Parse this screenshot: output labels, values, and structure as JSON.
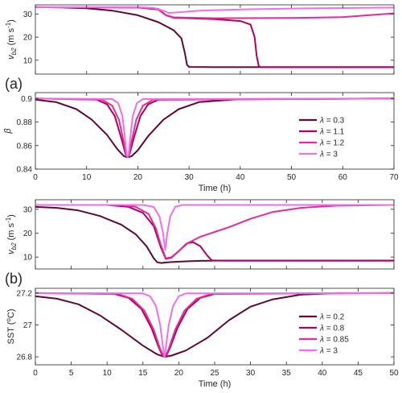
{
  "panel_labels": [
    "(a)",
    "(b)"
  ],
  "colors": {
    "dark_maroon": "#5c0a33",
    "crimson": "#b0005f",
    "magenta": "#e02d97",
    "light_magenta": "#f26ee8",
    "axis": "#262626"
  },
  "chart_data": [
    {
      "id": "a-top",
      "type": "line",
      "title": "",
      "xlabel": "",
      "ylabel": "v_b2 (m s^-1)",
      "xlim": [
        0,
        70
      ],
      "ylim": [
        4,
        34
      ],
      "xticks": [],
      "yticks": [
        10,
        20,
        30
      ],
      "grid": false,
      "series": [
        {
          "name": "λ = 0.3",
          "color": "#5c0a33",
          "points": [
            [
              0,
              33
            ],
            [
              5,
              32.9
            ],
            [
              10,
              32.5
            ],
            [
              15,
              31.5
            ],
            [
              20,
              29.5
            ],
            [
              24,
              26.5
            ],
            [
              27,
              23
            ],
            [
              28.5,
              19.5
            ],
            [
              29.2,
              13
            ],
            [
              29.6,
              8
            ],
            [
              30,
              7.1
            ],
            [
              35,
              7
            ],
            [
              70,
              7
            ]
          ]
        },
        {
          "name": "λ = 1.1",
          "color": "#b0005f",
          "points": [
            [
              0,
              33
            ],
            [
              20,
              32.8
            ],
            [
              24,
              32
            ],
            [
              25.5,
              29.5
            ],
            [
              27,
              28.4
            ],
            [
              30,
              28.2
            ],
            [
              35,
              27.8
            ],
            [
              40,
              27
            ],
            [
              42,
              25.5
            ],
            [
              42.8,
              20
            ],
            [
              43.2,
              12
            ],
            [
              43.6,
              7.5
            ],
            [
              44,
              7
            ],
            [
              70,
              7
            ]
          ]
        },
        {
          "name": "λ = 1.2",
          "color": "#e02d97",
          "points": [
            [
              0,
              33
            ],
            [
              20,
              32.9
            ],
            [
              24,
              32.3
            ],
            [
              25.5,
              29.5
            ],
            [
              27,
              28.6
            ],
            [
              35,
              28.2
            ],
            [
              50,
              28.3
            ],
            [
              60,
              28.7
            ],
            [
              65,
              29.5
            ],
            [
              70,
              30.3
            ]
          ]
        },
        {
          "name": "λ = 3",
          "color": "#f26ee8",
          "points": [
            [
              0,
              33
            ],
            [
              20,
              33
            ],
            [
              23,
              32.7
            ],
            [
              25,
              31.5
            ],
            [
              26,
              30.5
            ],
            [
              28,
              30.8
            ],
            [
              32,
              31.5
            ],
            [
              40,
              32
            ],
            [
              50,
              32.4
            ],
            [
              60,
              32.6
            ],
            [
              70,
              32.8
            ]
          ]
        }
      ]
    },
    {
      "id": "a-bottom",
      "type": "line",
      "title": "",
      "xlabel": "Time (h)",
      "ylabel": "β",
      "xlim": [
        0,
        70
      ],
      "ylim": [
        0.84,
        0.905
      ],
      "xticks": [
        0,
        10,
        20,
        30,
        40,
        50,
        60,
        70
      ],
      "yticks": [
        0.84,
        0.86,
        0.88,
        0.9
      ],
      "ytick_labels": [
        "0.84",
        "0.86",
        "0.88",
        "0.9"
      ],
      "grid": false,
      "legend": "right",
      "series": [
        {
          "name": "λ = 0.3",
          "color": "#5c0a33",
          "points": [
            [
              0,
              0.899
            ],
            [
              4,
              0.897
            ],
            [
              8,
              0.891
            ],
            [
              11,
              0.882
            ],
            [
              14,
              0.869
            ],
            [
              16,
              0.857
            ],
            [
              17.3,
              0.851
            ],
            [
              18,
              0.85
            ],
            [
              18.8,
              0.851
            ],
            [
              20,
              0.856
            ],
            [
              22,
              0.868
            ],
            [
              25,
              0.882
            ],
            [
              28,
              0.891
            ],
            [
              32,
              0.897
            ],
            [
              40,
              0.8995
            ],
            [
              70,
              0.9
            ]
          ]
        },
        {
          "name": "λ = 1.1",
          "color": "#b0005f",
          "points": [
            [
              0,
              0.9
            ],
            [
              12,
              0.899
            ],
            [
              14,
              0.895
            ],
            [
              15.5,
              0.885
            ],
            [
              16.8,
              0.866
            ],
            [
              17.6,
              0.853
            ],
            [
              18,
              0.85
            ],
            [
              18.4,
              0.853
            ],
            [
              19.2,
              0.866
            ],
            [
              20.5,
              0.885
            ],
            [
              22,
              0.895
            ],
            [
              24,
              0.899
            ],
            [
              70,
              0.9
            ]
          ]
        },
        {
          "name": "λ = 1.2",
          "color": "#e02d97",
          "points": [
            [
              0,
              0.9
            ],
            [
              13,
              0.899
            ],
            [
              15,
              0.894
            ],
            [
              16.3,
              0.882
            ],
            [
              17.2,
              0.864
            ],
            [
              17.7,
              0.853
            ],
            [
              18,
              0.85
            ],
            [
              18.3,
              0.853
            ],
            [
              18.8,
              0.864
            ],
            [
              19.7,
              0.882
            ],
            [
              21,
              0.894
            ],
            [
              23,
              0.899
            ],
            [
              70,
              0.9
            ]
          ]
        },
        {
          "name": "λ = 3",
          "color": "#f26ee8",
          "points": [
            [
              0,
              0.9
            ],
            [
              15,
              0.8995
            ],
            [
              16.2,
              0.896
            ],
            [
              17,
              0.885
            ],
            [
              17.5,
              0.866
            ],
            [
              17.8,
              0.853
            ],
            [
              18,
              0.85
            ],
            [
              18.2,
              0.853
            ],
            [
              18.5,
              0.866
            ],
            [
              19,
              0.885
            ],
            [
              19.8,
              0.896
            ],
            [
              21,
              0.8995
            ],
            [
              70,
              0.9
            ]
          ]
        }
      ]
    },
    {
      "id": "b-top",
      "type": "line",
      "title": "",
      "xlabel": "",
      "ylabel": "v_b2 (m s^-1)",
      "xlim": [
        0,
        50
      ],
      "ylim": [
        5,
        34
      ],
      "xticks": [],
      "yticks": [
        10,
        20,
        30
      ],
      "grid": false,
      "series": [
        {
          "name": "λ = 0.2",
          "color": "#5c0a33",
          "points": [
            [
              0,
              31
            ],
            [
              3,
              30.6
            ],
            [
              6,
              29.5
            ],
            [
              9,
              27.2
            ],
            [
              12,
              23.5
            ],
            [
              14,
              19.5
            ],
            [
              15.5,
              14.5
            ],
            [
              16.5,
              9.5
            ],
            [
              17,
              7.8
            ],
            [
              17.6,
              7.5
            ],
            [
              18,
              7.7
            ],
            [
              19,
              7.9
            ],
            [
              21,
              8.2
            ],
            [
              23,
              8.4
            ],
            [
              25,
              8.5
            ],
            [
              30,
              8.5
            ],
            [
              50,
              8.5
            ]
          ]
        },
        {
          "name": "λ = 0.8",
          "color": "#b0005f",
          "points": [
            [
              0,
              31.8
            ],
            [
              10,
              31.8
            ],
            [
              13,
              31
            ],
            [
              15,
              28.5
            ],
            [
              16.5,
              23
            ],
            [
              17.5,
              14
            ],
            [
              18.2,
              9.2
            ],
            [
              19,
              9.8
            ],
            [
              20,
              12.5
            ],
            [
              21.2,
              15.8
            ],
            [
              22,
              16.2
            ],
            [
              23,
              14.5
            ],
            [
              24,
              10.5
            ],
            [
              24.6,
              8.6
            ],
            [
              26,
              8.5
            ],
            [
              50,
              8.5
            ]
          ]
        },
        {
          "name": "λ = 0.85",
          "color": "#e02d97",
          "points": [
            [
              0,
              31.8
            ],
            [
              12,
              31.8
            ],
            [
              14,
              31
            ],
            [
              15.8,
              28
            ],
            [
              16.8,
              22
            ],
            [
              17.5,
              15
            ],
            [
              18.2,
              9.5
            ],
            [
              19,
              10
            ],
            [
              20,
              12.5
            ],
            [
              21,
              15.5
            ],
            [
              23,
              18.5
            ],
            [
              25,
              20.5
            ],
            [
              27,
              22.5
            ],
            [
              30,
              26
            ],
            [
              33,
              28.8
            ],
            [
              37,
              30.6
            ],
            [
              42,
              31.5
            ],
            [
              50,
              31.8
            ]
          ]
        },
        {
          "name": "λ = 3",
          "color": "#f26ee8",
          "points": [
            [
              0,
              31.8
            ],
            [
              15,
              31.8
            ],
            [
              16.5,
              31
            ],
            [
              17.3,
              27
            ],
            [
              17.8,
              20
            ],
            [
              18.1,
              13
            ],
            [
              18.4,
              20
            ],
            [
              18.8,
              27
            ],
            [
              19.5,
              31
            ],
            [
              20.5,
              31.8
            ],
            [
              50,
              31.8
            ]
          ]
        }
      ]
    },
    {
      "id": "b-bottom",
      "type": "line",
      "title": "",
      "xlabel": "Time (h)",
      "ylabel": "SST (°C)",
      "xlim": [
        0,
        50
      ],
      "ylim": [
        26.75,
        27.23
      ],
      "xticks": [
        0,
        5,
        10,
        15,
        20,
        25,
        30,
        35,
        40,
        45,
        50
      ],
      "yticks": [
        26.8,
        27,
        27.2
      ],
      "ytick_labels": [
        "26.8",
        "27",
        "27.2"
      ],
      "grid": false,
      "legend": "right",
      "series": [
        {
          "name": "λ = 0.2",
          "color": "#5c0a33",
          "points": [
            [
              0,
              27.18
            ],
            [
              3,
              27.165
            ],
            [
              6,
              27.13
            ],
            [
              9,
              27.06
            ],
            [
              12,
              26.97
            ],
            [
              15,
              26.87
            ],
            [
              17,
              26.815
            ],
            [
              18,
              26.8
            ],
            [
              19,
              26.808
            ],
            [
              21,
              26.84
            ],
            [
              24,
              26.92
            ],
            [
              27,
              27.03
            ],
            [
              30,
              27.115
            ],
            [
              33,
              27.16
            ],
            [
              37,
              27.19
            ],
            [
              42,
              27.2
            ],
            [
              50,
              27.2
            ]
          ]
        },
        {
          "name": "λ = 0.8",
          "color": "#b0005f",
          "points": [
            [
              0,
              27.2
            ],
            [
              11,
              27.195
            ],
            [
              13,
              27.17
            ],
            [
              14.8,
              27.1
            ],
            [
              16.2,
              26.98
            ],
            [
              17.2,
              26.86
            ],
            [
              17.7,
              26.81
            ],
            [
              18,
              26.8
            ],
            [
              18.3,
              26.81
            ],
            [
              18.8,
              26.86
            ],
            [
              19.8,
              26.98
            ],
            [
              21.2,
              27.1
            ],
            [
              23,
              27.17
            ],
            [
              25,
              27.195
            ],
            [
              50,
              27.2
            ]
          ]
        },
        {
          "name": "λ = 0.85",
          "color": "#e02d97",
          "points": [
            [
              0,
              27.2
            ],
            [
              11.5,
              27.195
            ],
            [
              13.5,
              27.165
            ],
            [
              15.2,
              27.09
            ],
            [
              16.5,
              26.97
            ],
            [
              17.4,
              26.85
            ],
            [
              17.8,
              26.81
            ],
            [
              18,
              26.8
            ],
            [
              18.2,
              26.81
            ],
            [
              18.6,
              26.85
            ],
            [
              19.5,
              26.97
            ],
            [
              20.8,
              27.09
            ],
            [
              22.5,
              27.165
            ],
            [
              24.5,
              27.195
            ],
            [
              50,
              27.2
            ]
          ]
        },
        {
          "name": "λ = 3",
          "color": "#f26ee8",
          "points": [
            [
              0,
              27.2
            ],
            [
              15,
              27.198
            ],
            [
              16,
              27.18
            ],
            [
              16.8,
              27.12
            ],
            [
              17.4,
              27.0
            ],
            [
              17.8,
              26.86
            ],
            [
              18,
              26.8
            ],
            [
              18.2,
              26.86
            ],
            [
              18.6,
              27.0
            ],
            [
              19.2,
              27.12
            ],
            [
              20,
              27.18
            ],
            [
              21,
              27.198
            ],
            [
              50,
              27.2
            ]
          ]
        }
      ]
    }
  ]
}
